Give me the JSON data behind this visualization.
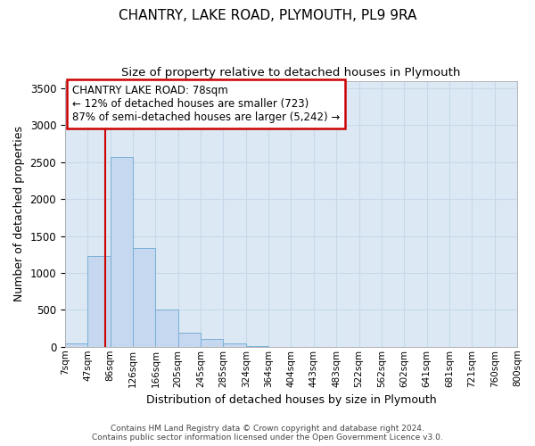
{
  "title1": "CHANTRY, LAKE ROAD, PLYMOUTH, PL9 9RA",
  "title2": "Size of property relative to detached houses in Plymouth",
  "xlabel": "Distribution of detached houses by size in Plymouth",
  "ylabel": "Number of detached properties",
  "bin_labels": [
    "7sqm",
    "47sqm",
    "86sqm",
    "126sqm",
    "166sqm",
    "205sqm",
    "245sqm",
    "285sqm",
    "324sqm",
    "364sqm",
    "404sqm",
    "443sqm",
    "483sqm",
    "522sqm",
    "562sqm",
    "602sqm",
    "641sqm",
    "681sqm",
    "721sqm",
    "760sqm",
    "800sqm"
  ],
  "bar_values": [
    50,
    1230,
    2570,
    1340,
    500,
    195,
    105,
    40,
    10,
    3,
    1,
    0,
    0,
    0,
    0,
    0,
    0,
    0,
    0,
    0
  ],
  "bar_color": "#c5d8f0",
  "bar_edge_color": "#7aafd4",
  "grid_color": "#c8d8e8",
  "annotation_text_line1": "CHANTRY LAKE ROAD: 78sqm",
  "annotation_text_line2": "← 12% of detached houses are smaller (723)",
  "annotation_text_line3": "87% of semi-detached houses are larger (5,242) →",
  "annotation_box_color": "#ffffff",
  "annotation_box_edge": "#cc0000",
  "vline_color": "#cc0000",
  "ylim": [
    0,
    3600
  ],
  "yticks": [
    0,
    500,
    1000,
    1500,
    2000,
    2500,
    3000,
    3500
  ],
  "footer1": "Contains HM Land Registry data © Crown copyright and database right 2024.",
  "footer2": "Contains public sector information licensed under the Open Government Licence v3.0."
}
